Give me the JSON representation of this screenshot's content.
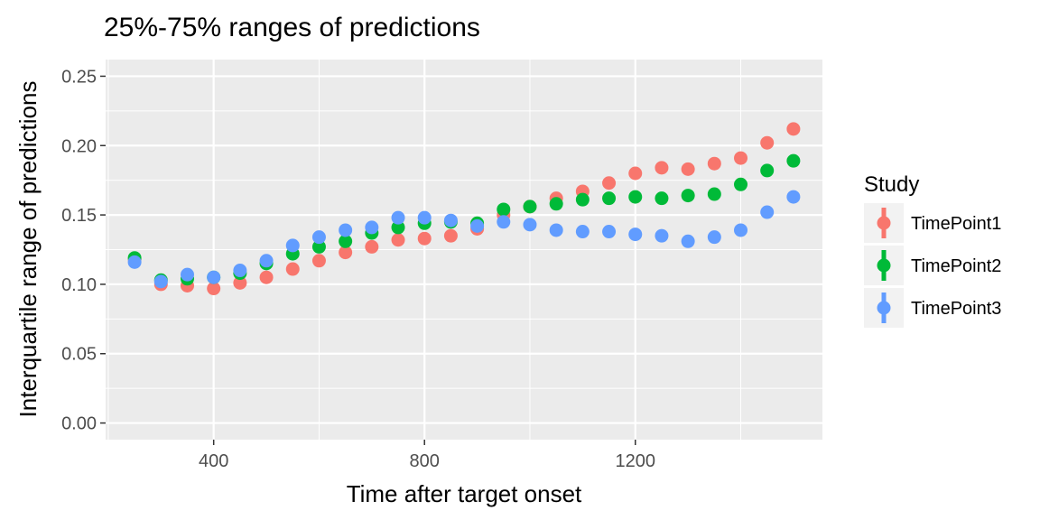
{
  "chart_data": {
    "type": "scatter",
    "title": "25%-75% ranges of predictions",
    "xlabel": "Time after target onset",
    "ylabel": "Interquartile range of predictions",
    "xlim": [
      195,
      1555
    ],
    "ylim": [
      -0.012,
      0.262
    ],
    "x_ticks": [
      400,
      800,
      1200
    ],
    "x_tick_labels": [
      "400",
      "800",
      "1200"
    ],
    "y_ticks": [
      0.0,
      0.05,
      0.1,
      0.15,
      0.2,
      0.25
    ],
    "y_tick_labels": [
      "0.00",
      "0.05",
      "0.10",
      "0.15",
      "0.20",
      "0.25"
    ],
    "grid": true,
    "legend": {
      "title": "Study",
      "position": "right"
    },
    "x": [
      250,
      300,
      350,
      400,
      450,
      500,
      550,
      600,
      650,
      700,
      750,
      800,
      850,
      900,
      950,
      1000,
      1050,
      1100,
      1150,
      1200,
      1250,
      1300,
      1350,
      1400,
      1450,
      1500
    ],
    "series": [
      {
        "name": "TimePoint1",
        "color": "#F8766D",
        "values": [
          0.118,
          0.1,
          0.099,
          0.097,
          0.101,
          0.105,
          0.111,
          0.117,
          0.123,
          0.127,
          0.132,
          0.133,
          0.135,
          0.14,
          0.15,
          0.156,
          0.162,
          0.167,
          0.173,
          0.18,
          0.184,
          0.183,
          0.187,
          0.191,
          0.202,
          0.212
        ]
      },
      {
        "name": "TimePoint2",
        "color": "#00BA38",
        "values": [
          0.119,
          0.103,
          0.104,
          0.105,
          0.108,
          0.115,
          0.122,
          0.127,
          0.131,
          0.137,
          0.141,
          0.144,
          0.145,
          0.144,
          0.154,
          0.156,
          0.158,
          0.161,
          0.162,
          0.163,
          0.162,
          0.164,
          0.165,
          0.172,
          0.182,
          0.189
        ]
      },
      {
        "name": "TimePoint3",
        "color": "#619CFF",
        "values": [
          0.116,
          0.102,
          0.107,
          0.105,
          0.11,
          0.117,
          0.128,
          0.134,
          0.139,
          0.141,
          0.148,
          0.148,
          0.146,
          0.142,
          0.145,
          0.143,
          0.139,
          0.138,
          0.138,
          0.136,
          0.135,
          0.131,
          0.134,
          0.139,
          0.152,
          0.163
        ]
      }
    ]
  },
  "colors": {
    "panel_background": "#EBEBEB",
    "grid_major": "#FFFFFF",
    "legend_key_background": "#F2F2F2"
  }
}
